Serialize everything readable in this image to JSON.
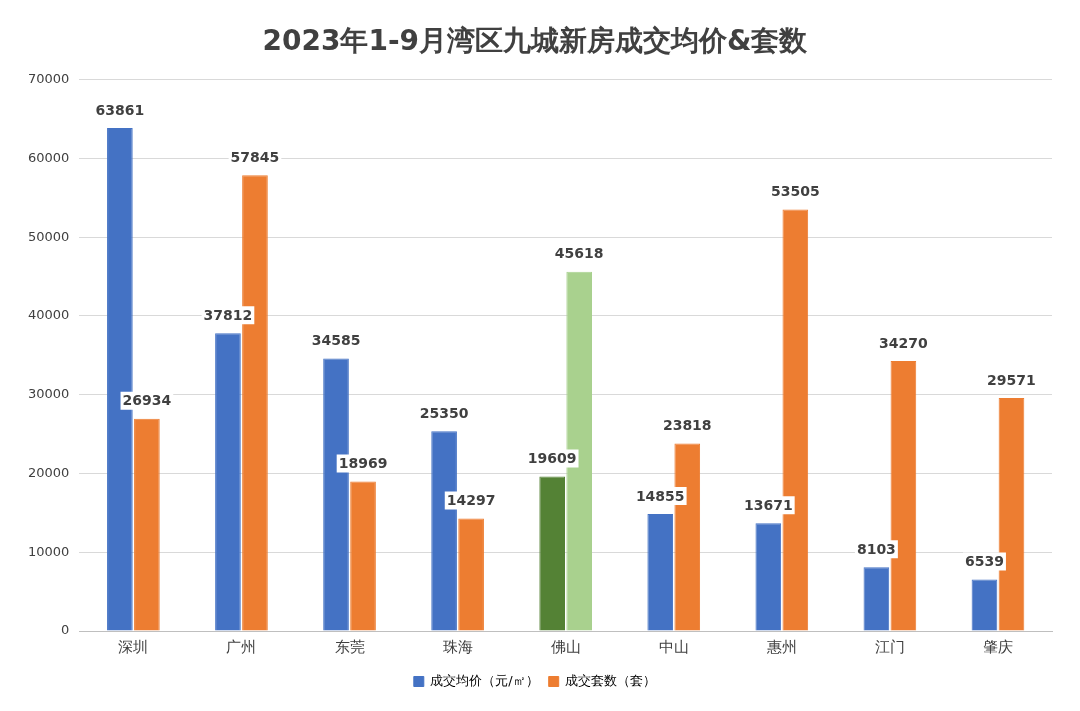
{
  "chart_data": {
    "type": "bar",
    "title": "2023年1-9月湾区九城新房成交均价&套数",
    "categories": [
      "深圳",
      "广州",
      "东莞",
      "珠海",
      "佛山",
      "中山",
      "惠州",
      "江门",
      "肇庆"
    ],
    "series": [
      {
        "name": "成交均价（元/㎡）",
        "color": "#4472c4",
        "colors": [
          "#4472c4",
          "#4472c4",
          "#4472c4",
          "#4472c4",
          "#548235",
          "#4472c4",
          "#4472c4",
          "#4472c4",
          "#4472c4"
        ],
        "values": [
          63861,
          37812,
          34585,
          25350,
          19609,
          14855,
          13671,
          8103,
          6539
        ]
      },
      {
        "name": "成交套数（套）",
        "color": "#ed7d31",
        "colors": [
          "#ed7d31",
          "#ed7d31",
          "#ed7d31",
          "#ed7d31",
          "#a9d18e",
          "#ed7d31",
          "#ed7d31",
          "#ed7d31",
          "#ed7d31"
        ],
        "values": [
          26934,
          57845,
          18969,
          14297,
          45618,
          23818,
          53505,
          34270,
          29571
        ]
      }
    ],
    "ylim": [
      0,
      70000
    ],
    "yticks": [
      0,
      10000,
      20000,
      30000,
      40000,
      50000,
      60000,
      70000
    ],
    "grid": "y",
    "legend": "bottom",
    "data_labels": true
  }
}
